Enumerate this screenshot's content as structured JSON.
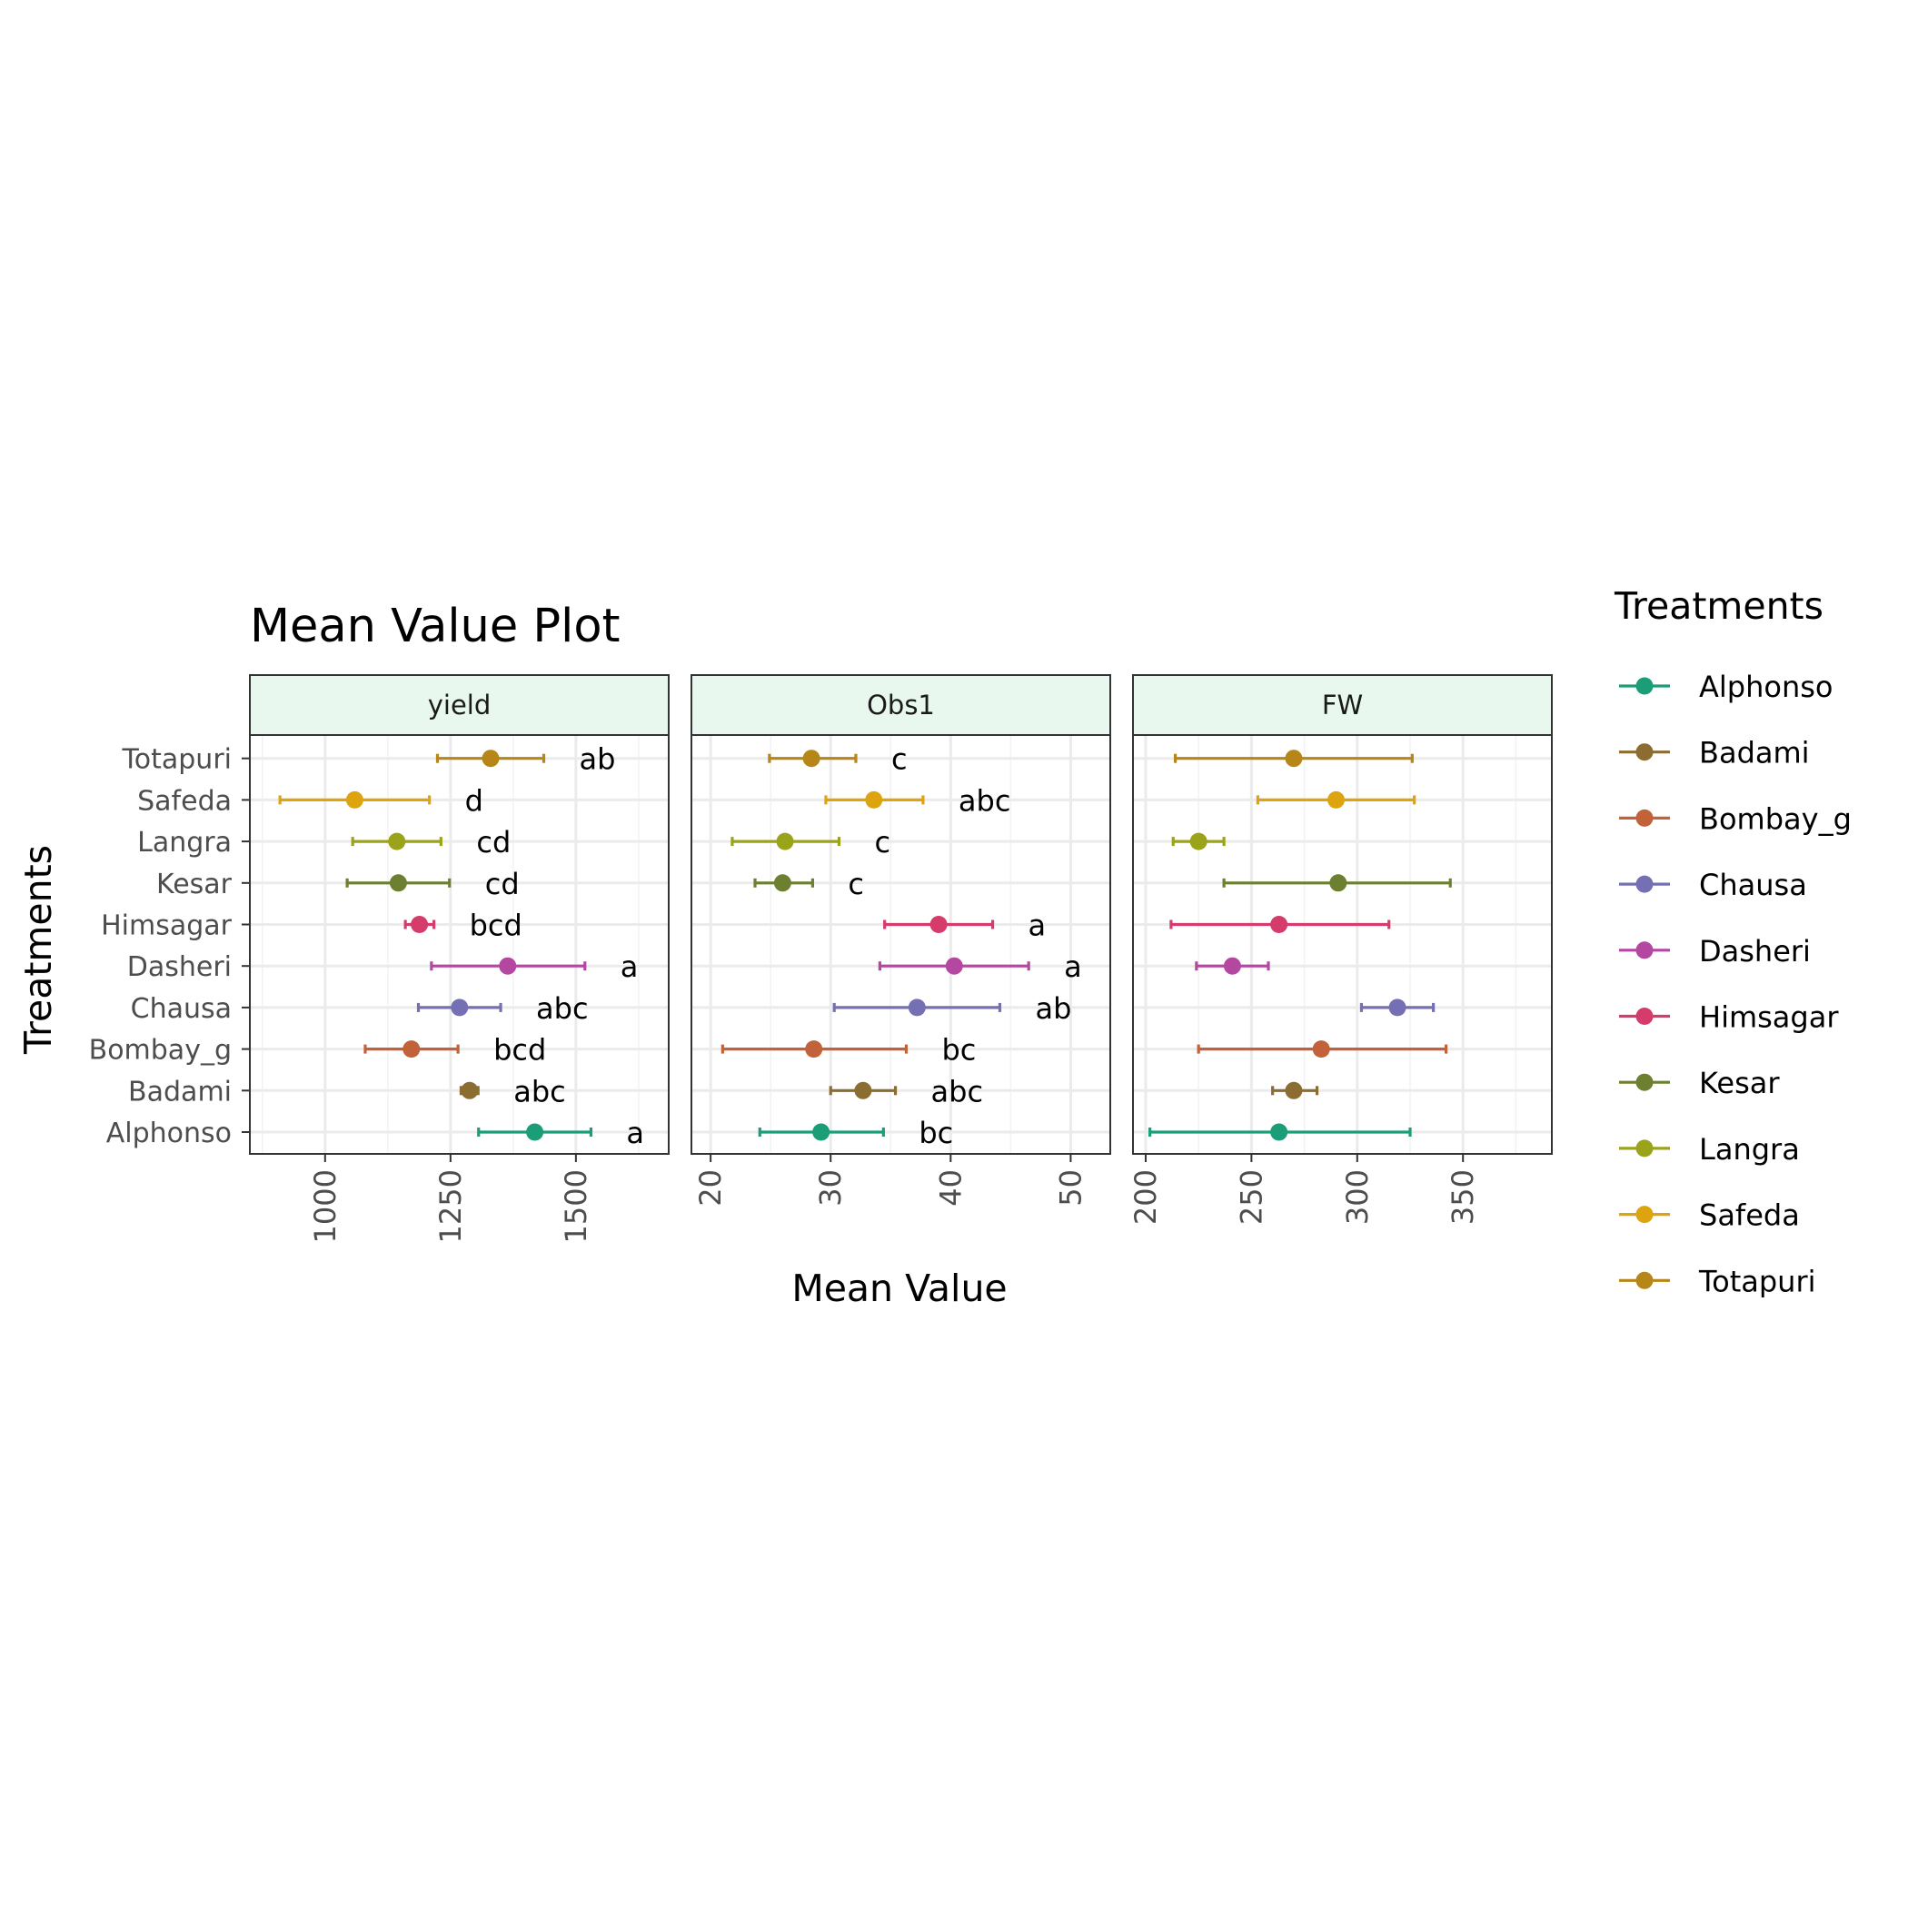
{
  "chart_data": {
    "type": "scatter",
    "title": "Mean Value Plot",
    "xlabel": "Mean Value",
    "ylabel": "Treatments",
    "legend_title": "Treatments",
    "legend_position": "right",
    "grid": true,
    "categories": [
      "Alphonso",
      "Badami",
      "Bombay_g",
      "Chausa",
      "Dasheri",
      "Himsagar",
      "Kesar",
      "Langra",
      "Safeda",
      "Totapuri"
    ],
    "colors": {
      "Alphonso": "#1b9e77",
      "Badami": "#8c6d31",
      "Bombay_g": "#c1623a",
      "Chausa": "#7570b3",
      "Dasheri": "#b447a0",
      "Himsagar": "#d63c6b",
      "Kesar": "#6d7f30",
      "Langra": "#9aa31a",
      "Safeda": "#dda40f",
      "Totapuri": "#b68619"
    },
    "panels": [
      {
        "strip": "yield",
        "xlim": [
          850,
          1685
        ],
        "ticks": [
          "1000",
          "1250",
          "1500"
        ],
        "tick_values": [
          1000,
          1250,
          1500
        ],
        "points": [
          {
            "treatment": "Alphonso",
            "mean": 1418,
            "lower": 1306,
            "upper": 1530,
            "group": "a"
          },
          {
            "treatment": "Badami",
            "mean": 1288,
            "lower": 1271,
            "upper": 1305,
            "group": "abc"
          },
          {
            "treatment": "Bombay_g",
            "mean": 1172,
            "lower": 1080,
            "upper": 1265,
            "group": "bcd"
          },
          {
            "treatment": "Chausa",
            "mean": 1268,
            "lower": 1186,
            "upper": 1350,
            "group": "abc"
          },
          {
            "treatment": "Dasheri",
            "mean": 1364,
            "lower": 1212,
            "upper": 1518,
            "group": "a"
          },
          {
            "treatment": "Himsagar",
            "mean": 1188,
            "lower": 1160,
            "upper": 1217,
            "group": "bcd"
          },
          {
            "treatment": "Kesar",
            "mean": 1146,
            "lower": 1044,
            "upper": 1248,
            "group": "cd"
          },
          {
            "treatment": "Langra",
            "mean": 1143,
            "lower": 1055,
            "upper": 1231,
            "group": "cd"
          },
          {
            "treatment": "Safeda",
            "mean": 1059,
            "lower": 910,
            "upper": 1208,
            "group": "d"
          },
          {
            "treatment": "Totapuri",
            "mean": 1330,
            "lower": 1224,
            "upper": 1436,
            "group": "ab"
          }
        ]
      },
      {
        "strip": "Obs1",
        "xlim": [
          18.4,
          53.3
        ],
        "ticks": [
          "20",
          "30",
          "40",
          "50"
        ],
        "tick_values": [
          20,
          30,
          40,
          50
        ],
        "points": [
          {
            "treatment": "Alphonso",
            "mean": 29.2,
            "lower": 24.1,
            "upper": 34.4,
            "group": "bc"
          },
          {
            "treatment": "Badami",
            "mean": 32.7,
            "lower": 30.0,
            "upper": 35.4,
            "group": "abc"
          },
          {
            "treatment": "Bombay_g",
            "mean": 28.6,
            "lower": 21.0,
            "upper": 36.3,
            "group": "bc"
          },
          {
            "treatment": "Chausa",
            "mean": 37.2,
            "lower": 30.3,
            "upper": 44.1,
            "group": "ab"
          },
          {
            "treatment": "Dasheri",
            "mean": 40.3,
            "lower": 34.1,
            "upper": 46.5,
            "group": "a"
          },
          {
            "treatment": "Himsagar",
            "mean": 39.0,
            "lower": 34.5,
            "upper": 43.5,
            "group": "a"
          },
          {
            "treatment": "Kesar",
            "mean": 26.0,
            "lower": 23.7,
            "upper": 28.5,
            "group": "c"
          },
          {
            "treatment": "Langra",
            "mean": 26.2,
            "lower": 21.8,
            "upper": 30.7,
            "group": "c"
          },
          {
            "treatment": "Safeda",
            "mean": 33.6,
            "lower": 29.6,
            "upper": 37.7,
            "group": "abc"
          },
          {
            "treatment": "Totapuri",
            "mean": 28.4,
            "lower": 24.9,
            "upper": 32.1,
            "group": "c"
          }
        ]
      },
      {
        "strip": "FW",
        "xlim": [
          194,
          392
        ],
        "ticks": [
          "200",
          "250",
          "300",
          "350"
        ],
        "tick_values": [
          200,
          250,
          300,
          350
        ],
        "points": [
          {
            "treatment": "Alphonso",
            "mean": 263,
            "lower": 202,
            "upper": 325,
            "group": ""
          },
          {
            "treatment": "Badami",
            "mean": 270,
            "lower": 260,
            "upper": 281,
            "group": ""
          },
          {
            "treatment": "Bombay_g",
            "mean": 283,
            "lower": 225,
            "upper": 342,
            "group": ""
          },
          {
            "treatment": "Chausa",
            "mean": 319,
            "lower": 302,
            "upper": 336,
            "group": ""
          },
          {
            "treatment": "Dasheri",
            "mean": 241,
            "lower": 224,
            "upper": 258,
            "group": ""
          },
          {
            "treatment": "Himsagar",
            "mean": 263,
            "lower": 212,
            "upper": 315,
            "group": ""
          },
          {
            "treatment": "Kesar",
            "mean": 291,
            "lower": 237,
            "upper": 344,
            "group": ""
          },
          {
            "treatment": "Langra",
            "mean": 225,
            "lower": 213,
            "upper": 237,
            "group": ""
          },
          {
            "treatment": "Safeda",
            "mean": 290,
            "lower": 253,
            "upper": 327,
            "group": ""
          },
          {
            "treatment": "Totapuri",
            "mean": 270,
            "lower": 214,
            "upper": 326,
            "group": ""
          }
        ]
      }
    ]
  }
}
